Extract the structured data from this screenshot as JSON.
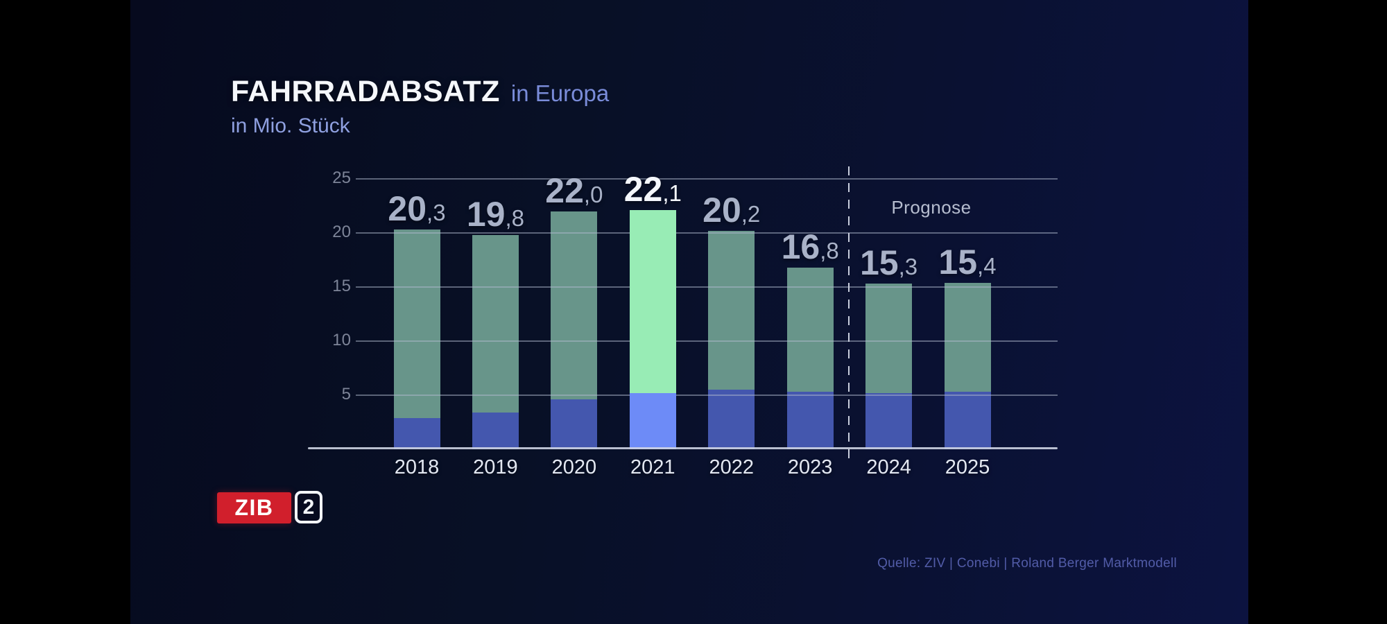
{
  "title": {
    "main": "FAHRRADABSATZ",
    "suffix": "in Europa",
    "subtitle": "in Mio. Stück"
  },
  "chart_data": {
    "type": "bar",
    "stacked": true,
    "title": "FAHRRADABSATZ in Europa",
    "ylabel": "in Mio. Stück",
    "xlabel": "",
    "categories": [
      "2018",
      "2019",
      "2020",
      "2021",
      "2022",
      "2023",
      "2024",
      "2025"
    ],
    "totals": [
      20.3,
      19.8,
      22.0,
      22.1,
      20.2,
      16.8,
      15.3,
      15.4
    ],
    "value_labels": [
      "20,3",
      "19,8",
      "22,0",
      "22,1",
      "20,2",
      "16,8",
      "15,3",
      "15,4"
    ],
    "series": [
      {
        "name": "lower-segment-blue",
        "values": [
          2.9,
          3.4,
          4.6,
          5.2,
          5.5,
          5.3,
          5.2,
          5.3
        ]
      },
      {
        "name": "upper-segment-green",
        "values": [
          17.4,
          16.4,
          17.4,
          16.9,
          14.7,
          11.5,
          10.1,
          10.1
        ]
      }
    ],
    "highlight_category": "2021",
    "prognose_label": "Prognose",
    "prognose_from_category": "2024",
    "y_ticks": [
      5,
      10,
      15,
      20,
      25
    ],
    "ylim": [
      0,
      25
    ],
    "grid": true,
    "legend": "none"
  },
  "logo": {
    "zib": "ZIB",
    "channel": "2"
  },
  "source": {
    "text": "Quelle: ZIV | Conebi | Roland Berger Marktmodell"
  },
  "colors": {
    "side_bars": "#000000",
    "background_start": "#060a1e",
    "background_end": "#0c1340",
    "bar_green": "#68958a",
    "bar_blue": "#4457ae",
    "bar_green_highlight": "#98ecb5",
    "bar_blue_highlight": "#6d8bf7",
    "gridline": "rgba(176,186,205,0.5)",
    "axis_line": "rgba(205,211,226,0.9)",
    "y_tick_label": "#7d8498",
    "value_label": "#a9b2c8",
    "value_label_highlight": "#f4f7fd",
    "year_label": "#e3e8f2",
    "prognose_text": "#b6bdcf",
    "dashed_line": "#c9cedd",
    "title_main": "#f5f7fb",
    "title_accent": "#7a8cd9",
    "subtitle": "#8fa0e0",
    "source_text": "#525ca8",
    "zib_red": "#d11f2c",
    "logo_white": "#f2f4f8"
  }
}
